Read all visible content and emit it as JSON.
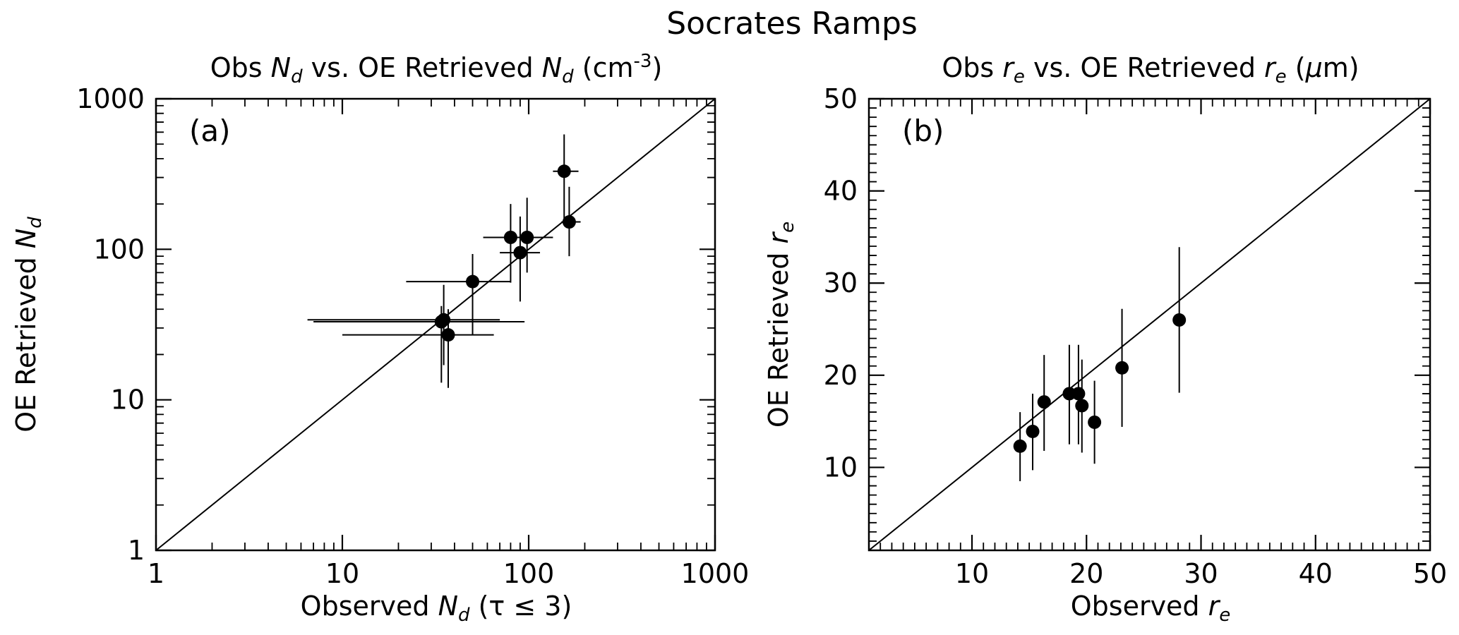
{
  "figure": {
    "title": "Socrates Ramps"
  },
  "chart_data": [
    {
      "type": "scatter",
      "panel_label": "(a)",
      "title": {
        "prefix": "Obs ",
        "var1": "N",
        "sub1": "d",
        "middle": " vs. OE Retrieved ",
        "var2": "N",
        "sub2": "d",
        "suffix_pre": " (cm",
        "sup": "-3",
        "suffix_post": ")"
      },
      "xlabel": {
        "prefix": "Observed ",
        "var": "N",
        "sub": "d",
        "suffix": " (τ ≤ 3)"
      },
      "ylabel": {
        "prefix": "OE Retrieved ",
        "var": "N",
        "sub": "d"
      },
      "xscale": "log",
      "yscale": "log",
      "xlim": [
        1,
        1000
      ],
      "ylim": [
        1,
        1000
      ],
      "xticks": [
        1,
        10,
        100,
        1000
      ],
      "xticklabels": [
        "1",
        "10",
        "100",
        "1000"
      ],
      "yticks": [
        1,
        10,
        100,
        1000
      ],
      "yticklabels": [
        "1",
        "10",
        "100",
        "1000"
      ],
      "one_to_one_line": true,
      "points": [
        {
          "x": 34,
          "y": 33,
          "xerr": [
            7,
            95
          ],
          "yerr": [
            13,
            42
          ]
        },
        {
          "x": 35,
          "y": 34,
          "xerr": [
            6.5,
            70
          ],
          "yerr": [
            17,
            58
          ]
        },
        {
          "x": 37,
          "y": 27,
          "xerr": [
            10,
            65
          ],
          "yerr": [
            12,
            40
          ]
        },
        {
          "x": 50,
          "y": 61,
          "xerr": [
            22,
            80
          ],
          "yerr": [
            27,
            93
          ]
        },
        {
          "x": 80,
          "y": 120,
          "xerr": [
            57,
            130
          ],
          "yerr": [
            60,
            200
          ]
        },
        {
          "x": 90,
          "y": 95,
          "xerr": [
            70,
            115
          ],
          "yerr": [
            45,
            165
          ]
        },
        {
          "x": 98,
          "y": 120,
          "xerr": [
            75,
            135
          ],
          "yerr": [
            70,
            220
          ]
        },
        {
          "x": 155,
          "y": 330,
          "xerr": [
            135,
            185
          ],
          "yerr": [
            160,
            580
          ]
        },
        {
          "x": 165,
          "y": 152,
          "xerr": [
            150,
            190
          ],
          "yerr": [
            90,
            260
          ]
        }
      ]
    },
    {
      "type": "scatter",
      "panel_label": "(b)",
      "title": {
        "prefix": "Obs ",
        "var1": "r",
        "sub1": "e",
        "middle": " vs. OE Retrieved ",
        "var2": "r",
        "sub2": "e",
        "suffix_pre": " (",
        "mu": "μ",
        "suffix_post": "m)"
      },
      "xlabel": {
        "prefix": "Observed ",
        "var": "r",
        "sub": "e"
      },
      "ylabel": {
        "prefix": "OE Retrieved ",
        "var": "r",
        "sub": "e"
      },
      "xscale": "linear",
      "yscale": "linear",
      "xlim": [
        1,
        50
      ],
      "ylim": [
        1,
        50
      ],
      "xticks": [
        10,
        20,
        30,
        40,
        50
      ],
      "xticklabels": [
        "10",
        "20",
        "30",
        "40",
        "50"
      ],
      "yticks": [
        10,
        20,
        30,
        40,
        50
      ],
      "yticklabels": [
        "10",
        "20",
        "30",
        "40",
        "50"
      ],
      "one_to_one_line": true,
      "points": [
        {
          "x": 14.2,
          "y": 12.3,
          "yerr": [
            8.5,
            16
          ]
        },
        {
          "x": 15.3,
          "y": 13.9,
          "yerr": [
            9.7,
            18
          ]
        },
        {
          "x": 16.3,
          "y": 17.1,
          "yerr": [
            11.8,
            22.2
          ]
        },
        {
          "x": 18.5,
          "y": 18.0,
          "yerr": [
            12.5,
            23.3
          ]
        },
        {
          "x": 19.3,
          "y": 18.0,
          "yerr": [
            12.5,
            23.3
          ]
        },
        {
          "x": 19.6,
          "y": 16.7,
          "yerr": [
            11.6,
            21.7
          ]
        },
        {
          "x": 20.7,
          "y": 14.9,
          "yerr": [
            10.4,
            19.4
          ]
        },
        {
          "x": 23.1,
          "y": 20.8,
          "yerr": [
            14.4,
            27.2
          ]
        },
        {
          "x": 28.1,
          "y": 26.0,
          "yerr": [
            18.1,
            33.9
          ]
        }
      ]
    }
  ]
}
